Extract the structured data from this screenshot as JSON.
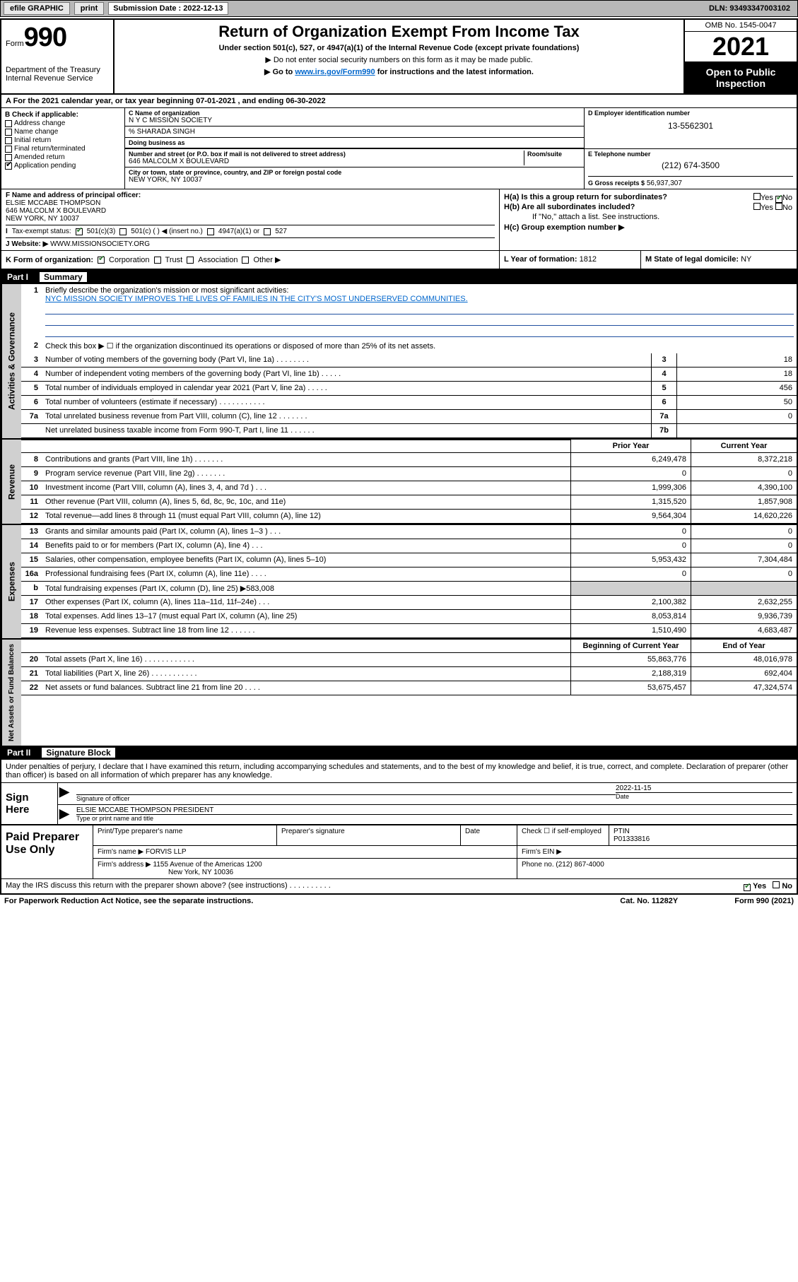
{
  "topbar": {
    "efile": "efile GRAPHIC",
    "print": "print",
    "sub_label": "Submission Date : 2022-12-13",
    "dln": "DLN: 93493347003102"
  },
  "header": {
    "form_label": "Form",
    "form_no": "990",
    "dept": "Department of the Treasury",
    "irs": "Internal Revenue Service",
    "title": "Return of Organization Exempt From Income Tax",
    "sub": "Under section 501(c), 527, or 4947(a)(1) of the Internal Revenue Code (except private foundations)",
    "note": "▶ Do not enter social security numbers on this form as it may be made public.",
    "link_pre": "▶ Go to ",
    "link": "www.irs.gov/Form990",
    "link_post": " for instructions and the latest information.",
    "omb": "OMB No. 1545-0047",
    "year": "2021",
    "open": "Open to Public Inspection"
  },
  "row_a": "A For the 2021 calendar year, or tax year beginning 07-01-2021  , and ending 06-30-2022",
  "col_b": {
    "lbl": "B Check if applicable:",
    "opts": [
      "Address change",
      "Name change",
      "Initial return",
      "Final return/terminated",
      "Amended return",
      "Application pending"
    ]
  },
  "col_c": {
    "name_lbl": "C Name of organization",
    "name": "N Y C MISSION SOCIETY",
    "care_lbl": "% SHARADA SINGH",
    "dba_lbl": "Doing business as",
    "addr_lbl": "Number and street (or P.O. box if mail is not delivered to street address)",
    "room_lbl": "Room/suite",
    "addr": "646 MALCOLM X BOULEVARD",
    "city_lbl": "City or town, state or province, country, and ZIP or foreign postal code",
    "city": "NEW YORK, NY  10037"
  },
  "col_d": {
    "ein_lbl": "D Employer identification number",
    "ein": "13-5562301",
    "tel_lbl": "E Telephone number",
    "tel": "(212) 674-3500",
    "gross_lbl": "G Gross receipts $",
    "gross": "56,937,307"
  },
  "row_f": {
    "lbl": "F Name and address of principal officer:",
    "name": "ELSIE MCCABE THOMPSON",
    "addr1": "646 MALCOLM X BOULEVARD",
    "addr2": "NEW YORK, NY  10037",
    "ha": "H(a)  Is this a group return for subordinates?",
    "hb": "H(b)  Are all subordinates included?",
    "hb_note": "If \"No,\" attach a list. See instructions.",
    "hc": "H(c)  Group exemption number ▶"
  },
  "row_i": {
    "lbl": "I",
    "tax": "Tax-exempt status:",
    "o1": "501(c)(3)",
    "o2": "501(c) (  ) ◀ (insert no.)",
    "o3": "4947(a)(1) or",
    "o4": "527"
  },
  "row_j": {
    "lbl": "J",
    "web_lbl": "Website: ▶",
    "web": "WWW.MISSIONSOCIETY.ORG"
  },
  "row_k": {
    "lbl": "K Form of organization:",
    "opts": [
      "Corporation",
      "Trust",
      "Association",
      "Other ▶"
    ]
  },
  "row_l": {
    "lbl": "L Year of formation:",
    "val": "1812"
  },
  "row_m": {
    "lbl": "M State of legal domicile:",
    "val": "NY"
  },
  "part1": {
    "lbl": "Part I",
    "title": "Summary"
  },
  "summary": {
    "l1_lbl": "Briefly describe the organization's mission or most significant activities:",
    "l1_text": "NYC MISSION SOCIETY IMPROVES THE LIVES OF FAMILIES IN THE CITY'S MOST UNDERSERVED COMMUNITIES.",
    "l2": "Check this box ▶ ☐ if the organization discontinued its operations or disposed of more than 25% of its net assets.",
    "lines_ag": [
      {
        "n": "3",
        "t": "Number of voting members of the governing body (Part VI, line 1a)  .   .   .   .   .   .   .   .",
        "bn": "3",
        "v": "18"
      },
      {
        "n": "4",
        "t": "Number of independent voting members of the governing body (Part VI, line 1b)  .   .   .   .   .",
        "bn": "4",
        "v": "18"
      },
      {
        "n": "5",
        "t": "Total number of individuals employed in calendar year 2021 (Part V, line 2a)  .   .   .   .   .",
        "bn": "5",
        "v": "456"
      },
      {
        "n": "6",
        "t": "Total number of volunteers (estimate if necessary)  .   .   .   .   .   .   .   .   .   .   .",
        "bn": "6",
        "v": "50"
      },
      {
        "n": "7a",
        "t": "Total unrelated business revenue from Part VIII, column (C), line 12  .   .   .   .   .   .   .",
        "bn": "7a",
        "v": "0"
      },
      {
        "n": "",
        "t": "Net unrelated business taxable income from Form 990-T, Part I, line 11  .   .   .   .   .   .",
        "bn": "7b",
        "v": ""
      }
    ],
    "col_prior": "Prior Year",
    "col_curr": "Current Year",
    "rev": [
      {
        "n": "8",
        "t": "Contributions and grants (Part VIII, line 1h)  .   .   .   .   .   .   .",
        "p": "6,249,478",
        "c": "8,372,218"
      },
      {
        "n": "9",
        "t": "Program service revenue (Part VIII, line 2g)  .   .   .   .   .   .   .",
        "p": "0",
        "c": "0"
      },
      {
        "n": "10",
        "t": "Investment income (Part VIII, column (A), lines 3, 4, and 7d )  .   .   .",
        "p": "1,999,306",
        "c": "4,390,100"
      },
      {
        "n": "11",
        "t": "Other revenue (Part VIII, column (A), lines 5, 6d, 8c, 9c, 10c, and 11e)",
        "p": "1,315,520",
        "c": "1,857,908"
      },
      {
        "n": "12",
        "t": "Total revenue—add lines 8 through 11 (must equal Part VIII, column (A), line 12)",
        "p": "9,564,304",
        "c": "14,620,226"
      }
    ],
    "exp": [
      {
        "n": "13",
        "t": "Grants and similar amounts paid (Part IX, column (A), lines 1–3 )  .   .   .",
        "p": "0",
        "c": "0"
      },
      {
        "n": "14",
        "t": "Benefits paid to or for members (Part IX, column (A), line 4)  .   .   .",
        "p": "0",
        "c": "0"
      },
      {
        "n": "15",
        "t": "Salaries, other compensation, employee benefits (Part IX, column (A), lines 5–10)",
        "p": "5,953,432",
        "c": "7,304,484"
      },
      {
        "n": "16a",
        "t": "Professional fundraising fees (Part IX, column (A), line 11e)  .   .   .   .",
        "p": "0",
        "c": "0"
      },
      {
        "n": "b",
        "t": "Total fundraising expenses (Part IX, column (D), line 25) ▶583,008",
        "p": "",
        "c": "",
        "gray": true
      },
      {
        "n": "17",
        "t": "Other expenses (Part IX, column (A), lines 11a–11d, 11f–24e)  .   .   .",
        "p": "2,100,382",
        "c": "2,632,255"
      },
      {
        "n": "18",
        "t": "Total expenses. Add lines 13–17 (must equal Part IX, column (A), line 25)",
        "p": "8,053,814",
        "c": "9,936,739"
      },
      {
        "n": "19",
        "t": "Revenue less expenses. Subtract line 18 from line 12  .   .   .   .   .   .",
        "p": "1,510,490",
        "c": "4,683,487"
      }
    ],
    "col_beg": "Beginning of Current Year",
    "col_end": "End of Year",
    "net": [
      {
        "n": "20",
        "t": "Total assets (Part X, line 16)  .   .   .   .   .   .   .   .   .   .   .   .",
        "p": "55,863,776",
        "c": "48,016,978"
      },
      {
        "n": "21",
        "t": "Total liabilities (Part X, line 26)  .   .   .   .   .   .   .   .   .   .   .",
        "p": "2,188,319",
        "c": "692,404"
      },
      {
        "n": "22",
        "t": "Net assets or fund balances. Subtract line 21 from line 20  .   .   .   .",
        "p": "53,675,457",
        "c": "47,324,574"
      }
    ]
  },
  "part2": {
    "lbl": "Part II",
    "title": "Signature Block"
  },
  "sig": {
    "decl": "Under penalties of perjury, I declare that I have examined this return, including accompanying schedules and statements, and to the best of my knowledge and belief, it is true, correct, and complete. Declaration of preparer (other than officer) is based on all information of which preparer has any knowledge.",
    "sign_here": "Sign Here",
    "sig_lbl": "Signature of officer",
    "date_lbl": "Date",
    "date": "2022-11-15",
    "name": "ELSIE MCCABE THOMPSON  PRESIDENT",
    "name_lbl": "Type or print name and title"
  },
  "paid": {
    "lbl": "Paid Preparer Use Only",
    "h1": "Print/Type preparer's name",
    "h2": "Preparer's signature",
    "h3": "Date",
    "h4_chk": "Check ☐ if self-employed",
    "h4_ptin": "PTIN",
    "ptin": "P01333816",
    "firm_lbl": "Firm's name    ▶",
    "firm": "FORVIS LLP",
    "ein_lbl": "Firm's EIN ▶",
    "addr_lbl": "Firm's address ▶",
    "addr1": "1155 Avenue of the Americas 1200",
    "addr2": "New York, NY  10036",
    "phone_lbl": "Phone no.",
    "phone": "(212) 867-4000"
  },
  "footer": {
    "may": "May the IRS discuss this return with the preparer shown above? (see instructions)  .   .   .   .   .   .   .   .   .   .",
    "yes": "Yes",
    "no": "No",
    "pra": "For Paperwork Reduction Act Notice, see the separate instructions.",
    "cat": "Cat. No. 11282Y",
    "form": "Form 990 (2021)"
  }
}
